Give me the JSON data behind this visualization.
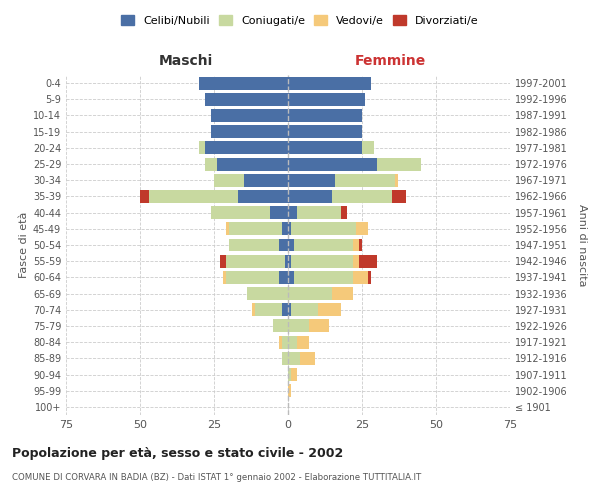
{
  "age_groups": [
    "100+",
    "95-99",
    "90-94",
    "85-89",
    "80-84",
    "75-79",
    "70-74",
    "65-69",
    "60-64",
    "55-59",
    "50-54",
    "45-49",
    "40-44",
    "35-39",
    "30-34",
    "25-29",
    "20-24",
    "15-19",
    "10-14",
    "5-9",
    "0-4"
  ],
  "birth_years": [
    "≤ 1901",
    "1902-1906",
    "1907-1911",
    "1912-1916",
    "1917-1921",
    "1922-1926",
    "1927-1931",
    "1932-1936",
    "1937-1941",
    "1942-1946",
    "1947-1951",
    "1952-1956",
    "1957-1961",
    "1962-1966",
    "1967-1971",
    "1972-1976",
    "1977-1981",
    "1982-1986",
    "1987-1991",
    "1992-1996",
    "1997-2001"
  ],
  "male": {
    "celibi": [
      0,
      0,
      0,
      0,
      0,
      0,
      2,
      0,
      3,
      1,
      3,
      2,
      6,
      17,
      15,
      24,
      28,
      26,
      26,
      28,
      30
    ],
    "coniugati": [
      0,
      0,
      0,
      2,
      2,
      5,
      9,
      14,
      18,
      20,
      17,
      18,
      20,
      30,
      10,
      4,
      2,
      0,
      0,
      0,
      0
    ],
    "vedovi": [
      0,
      0,
      0,
      0,
      1,
      0,
      1,
      0,
      1,
      0,
      0,
      1,
      0,
      0,
      0,
      0,
      0,
      0,
      0,
      0,
      0
    ],
    "divorziati": [
      0,
      0,
      0,
      0,
      0,
      0,
      0,
      0,
      0,
      2,
      0,
      0,
      0,
      3,
      0,
      0,
      0,
      0,
      0,
      0,
      0
    ]
  },
  "female": {
    "nubili": [
      0,
      0,
      0,
      0,
      0,
      0,
      1,
      0,
      2,
      1,
      2,
      1,
      3,
      15,
      16,
      30,
      25,
      25,
      25,
      26,
      28
    ],
    "coniugate": [
      0,
      0,
      1,
      4,
      3,
      7,
      9,
      15,
      20,
      21,
      20,
      22,
      15,
      20,
      20,
      15,
      4,
      0,
      0,
      0,
      0
    ],
    "vedove": [
      0,
      1,
      2,
      5,
      4,
      7,
      8,
      7,
      5,
      2,
      2,
      4,
      0,
      0,
      1,
      0,
      0,
      0,
      0,
      0,
      0
    ],
    "divorziate": [
      0,
      0,
      0,
      0,
      0,
      0,
      0,
      0,
      1,
      6,
      1,
      0,
      2,
      5,
      0,
      0,
      0,
      0,
      0,
      0,
      0
    ]
  },
  "colors": {
    "celibi_nubili": "#4a6fa5",
    "coniugati": "#c8d9a0",
    "vedovi": "#f5c97a",
    "divorziati": "#c0392b"
  },
  "xlim": 75,
  "title": "Popolazione per età, sesso e stato civile - 2002",
  "subtitle": "COMUNE DI CORVARA IN BADIA (BZ) - Dati ISTAT 1° gennaio 2002 - Elaborazione TUTTITALIA.IT",
  "xlabel_left": "Maschi",
  "xlabel_right": "Femmine",
  "ylabel_left": "Fasce di età",
  "ylabel_right": "Anni di nascita"
}
